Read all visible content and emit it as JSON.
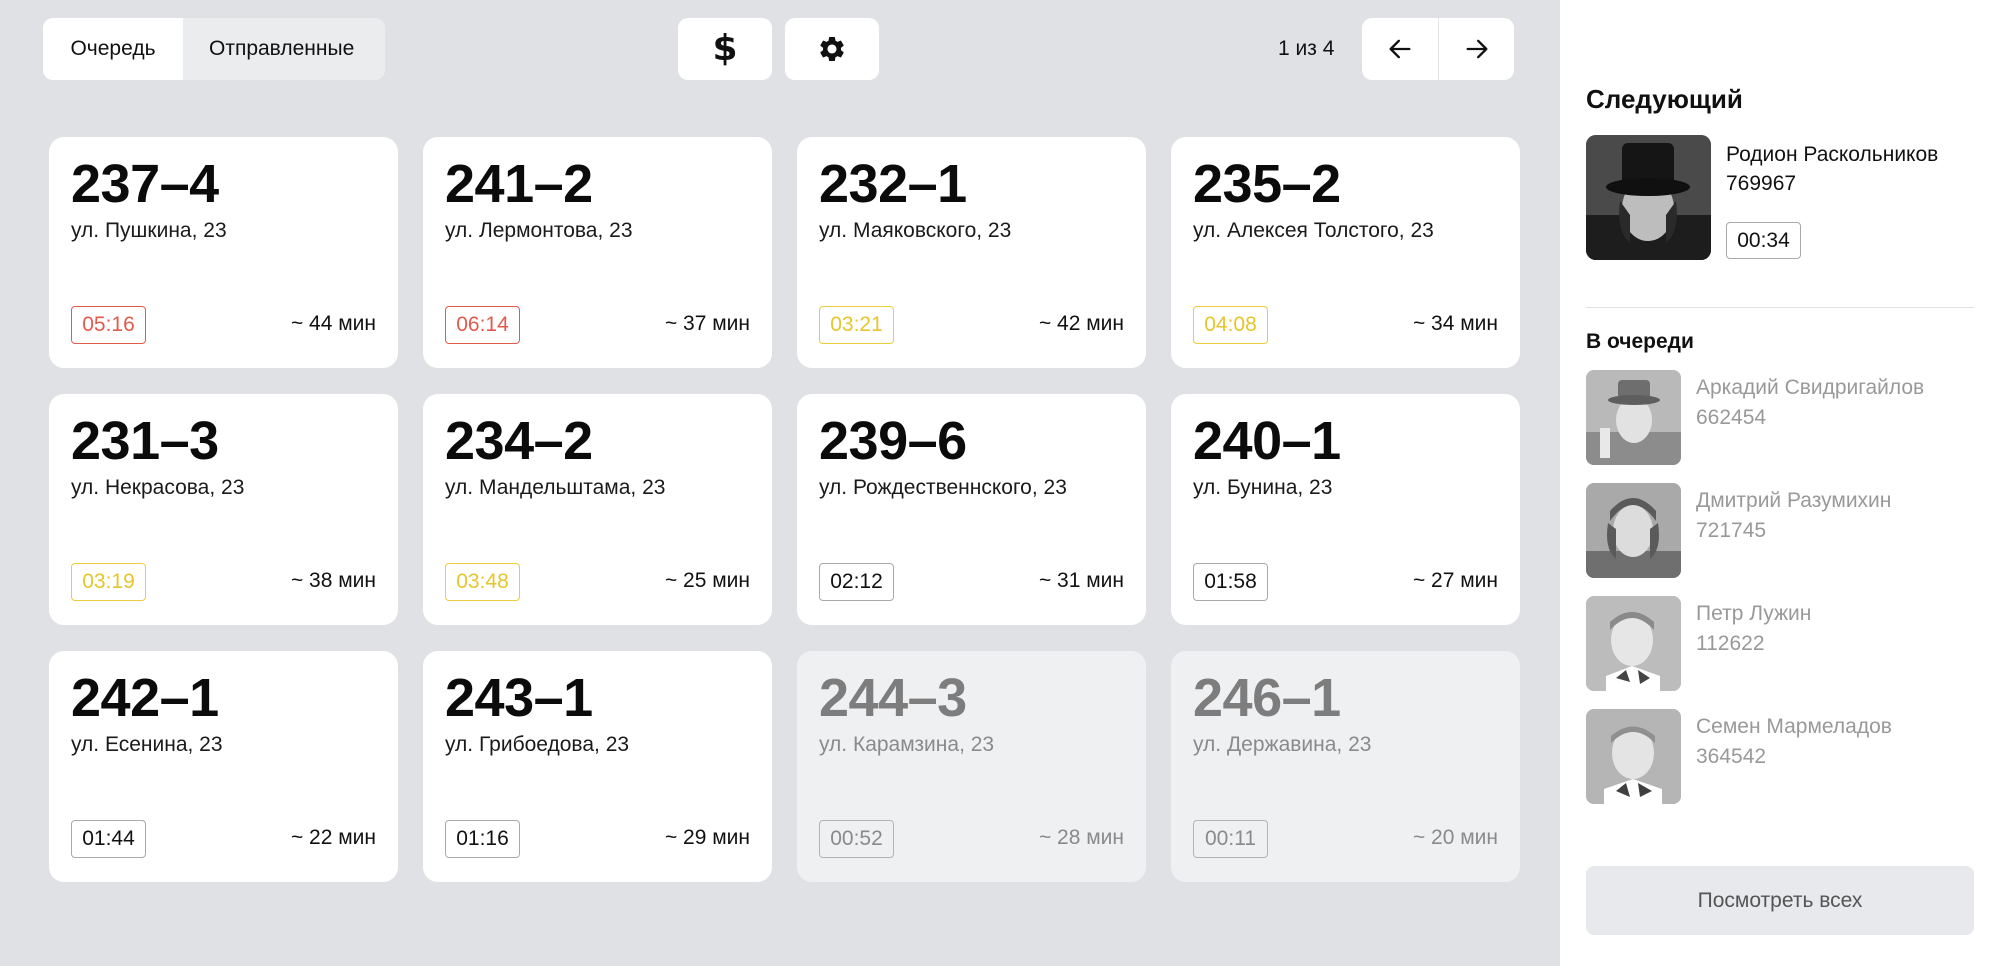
{
  "tabs": {
    "queue": "Очередь",
    "sent": "Отправленные"
  },
  "toolbar": {
    "dollar_icon": "dollar-icon",
    "gear_icon": "gear-icon"
  },
  "pagination": {
    "text": "1 из 4",
    "current_page": 1,
    "total_pages": 4
  },
  "colors": {
    "timer_red": "#e15b4d",
    "timer_yellow": "#e7c52c",
    "background": "#dfe1e5",
    "card": "#ffffff",
    "card_muted": "#eff0f2"
  },
  "cards": [
    {
      "number": "237–4",
      "address": "ул. Пушкина, 23",
      "timer": "05:16",
      "eta": "~ 44 мин",
      "status": "red"
    },
    {
      "number": "241–2",
      "address": "ул. Лермонтова, 23",
      "timer": "06:14",
      "eta": "~ 37 мин",
      "status": "red"
    },
    {
      "number": "232–1",
      "address": "ул. Маяковского, 23",
      "timer": "03:21",
      "eta": "~ 42 мин",
      "status": "yellow"
    },
    {
      "number": "235–2",
      "address": "ул. Алексея Толстого, 23",
      "timer": "04:08",
      "eta": "~ 34 мин",
      "status": "yellow"
    },
    {
      "number": "231–3",
      "address": "ул. Некрасова, 23",
      "timer": "03:19",
      "eta": "~ 38 мин",
      "status": "yellow"
    },
    {
      "number": "234–2",
      "address": "ул. Мандельштама, 23",
      "timer": "03:48",
      "eta": "~ 25 мин",
      "status": "yellow"
    },
    {
      "number": "239–6",
      "address": "ул. Рождественнского, 23",
      "timer": "02:12",
      "eta": "~ 31 мин",
      "status": "normal"
    },
    {
      "number": "240–1",
      "address": "ул. Бунина, 23",
      "timer": "01:58",
      "eta": "~ 27 мин",
      "status": "normal"
    },
    {
      "number": "242–1",
      "address": "ул. Есенина, 23",
      "timer": "01:44",
      "eta": "~ 22 мин",
      "status": "normal"
    },
    {
      "number": "243–1",
      "address": "ул. Грибоедова, 23",
      "timer": "01:16",
      "eta": "~ 29 мин",
      "status": "normal"
    },
    {
      "number": "244–3",
      "address": "ул. Карамзина, 23",
      "timer": "00:52",
      "eta": "~ 28 мин",
      "status": "muted"
    },
    {
      "number": "246–1",
      "address": "ул. Державина, 23",
      "timer": "00:11",
      "eta": "~ 20 мин",
      "status": "muted"
    }
  ],
  "panel": {
    "next_title": "Следующий",
    "next": {
      "name": "Родион Раскольников",
      "id": "769967",
      "timer": "00:34"
    },
    "queue_title": "В очереди",
    "queue": [
      {
        "name": "Аркадий Свидригайлов",
        "id": "662454"
      },
      {
        "name": "Дмитрий Разумихин",
        "id": "721745"
      },
      {
        "name": "Петр Лужин",
        "id": "112622"
      },
      {
        "name": "Семен Мармеладов",
        "id": "364542"
      }
    ],
    "see_all": "Посмотреть всех"
  }
}
